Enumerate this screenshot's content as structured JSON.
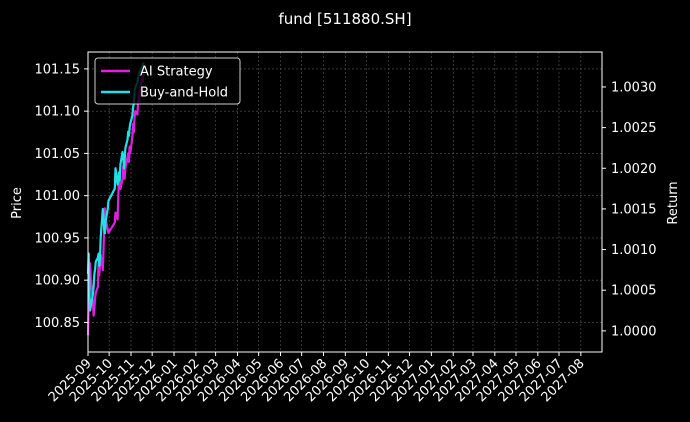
{
  "chart_data": {
    "type": "line",
    "title": "fund [511880.SH]",
    "xlabel": "",
    "ylabel": "Price",
    "y2label": "Return",
    "x_ticks": [
      "2025-09",
      "2025-10",
      "2025-11",
      "2025-12",
      "2026-01",
      "2026-02",
      "2026-03",
      "2026-04",
      "2026-05",
      "2026-06",
      "2026-07",
      "2026-08",
      "2026-09",
      "2026-10",
      "2026-11",
      "2026-12",
      "2027-01",
      "2027-02",
      "2027-03",
      "2027-04",
      "2027-05",
      "2027-06",
      "2027-07",
      "2027-08"
    ],
    "xlim": [
      "2025-09-01",
      "2027-08-31"
    ],
    "ylim": [
      100.815,
      101.17
    ],
    "y_ticks": [
      100.85,
      100.9,
      100.95,
      101.0,
      101.05,
      101.1,
      101.15
    ],
    "y2lim": [
      0.99974,
      1.00343
    ],
    "y2_ticks": [
      1.0,
      1.0005,
      1.001,
      1.0015,
      1.002,
      1.0025,
      1.003
    ],
    "grid": true,
    "legend_position": "upper-left",
    "background_color": "#000000",
    "series": [
      {
        "name": "AI Strategy",
        "axis": "price",
        "color": "#e020e0",
        "points": [
          [
            "2025-09-01",
            100.835
          ],
          [
            "2025-09-02",
            100.87
          ],
          [
            "2025-09-03",
            100.905
          ],
          [
            "2025-09-04",
            100.92
          ],
          [
            "2025-09-05",
            100.9
          ],
          [
            "2025-09-08",
            100.872
          ],
          [
            "2025-09-09",
            100.858
          ],
          [
            "2025-09-10",
            100.866
          ],
          [
            "2025-09-11",
            100.878
          ],
          [
            "2025-09-12",
            100.885
          ],
          [
            "2025-09-15",
            100.892
          ],
          [
            "2025-09-16",
            100.92
          ],
          [
            "2025-09-17",
            100.906
          ],
          [
            "2025-09-18",
            100.918
          ],
          [
            "2025-09-19",
            100.93
          ],
          [
            "2025-09-22",
            100.912
          ],
          [
            "2025-09-23",
            100.935
          ],
          [
            "2025-09-24",
            100.965
          ],
          [
            "2025-09-25",
            100.985
          ],
          [
            "2025-09-26",
            100.972
          ],
          [
            "2025-09-29",
            100.96
          ],
          [
            "2025-09-30",
            100.956
          ],
          [
            "2025-10-09",
            100.968
          ],
          [
            "2025-10-10",
            100.98
          ],
          [
            "2025-10-13",
            100.972
          ],
          [
            "2025-10-14",
            101.0
          ],
          [
            "2025-10-15",
            101.02
          ],
          [
            "2025-10-16",
            101.015
          ],
          [
            "2025-10-17",
            101.008
          ],
          [
            "2025-10-20",
            101.02
          ],
          [
            "2025-10-21",
            101.035
          ],
          [
            "2025-10-22",
            101.028
          ],
          [
            "2025-10-23",
            101.02
          ],
          [
            "2025-10-24",
            101.032
          ],
          [
            "2025-10-27",
            101.045
          ],
          [
            "2025-10-28",
            101.05
          ],
          [
            "2025-10-29",
            101.04
          ],
          [
            "2025-10-30",
            101.058
          ],
          [
            "2025-10-31",
            101.05
          ],
          [
            "2025-11-03",
            101.07
          ],
          [
            "2025-11-04",
            101.085
          ],
          [
            "2025-11-05",
            101.075
          ],
          [
            "2025-11-06",
            101.092
          ],
          [
            "2025-11-07",
            101.1
          ],
          [
            "2025-11-10",
            101.096
          ],
          [
            "2025-11-11",
            101.11
          ],
          [
            "2025-11-12",
            101.12
          ],
          [
            "2025-11-13",
            101.112
          ],
          [
            "2025-11-14",
            101.128
          ],
          [
            "2025-11-17",
            101.14
          ],
          [
            "2025-11-18",
            101.135
          ],
          [
            "2025-11-19",
            101.145
          ]
        ]
      },
      {
        "name": "Buy-and-Hold",
        "axis": "return",
        "color": "#20e0e8",
        "points": [
          [
            "2025-09-01",
            1.0007
          ],
          [
            "2025-09-02",
            1.00095
          ],
          [
            "2025-09-03",
            1.0005
          ],
          [
            "2025-09-04",
            1.00025
          ],
          [
            "2025-09-05",
            1.0003
          ],
          [
            "2025-09-08",
            1.00045
          ],
          [
            "2025-09-09",
            1.00055
          ],
          [
            "2025-09-10",
            1.0007
          ],
          [
            "2025-09-11",
            1.00075
          ],
          [
            "2025-09-12",
            1.00085
          ],
          [
            "2025-09-15",
            1.0009
          ],
          [
            "2025-09-16",
            1.00095
          ],
          [
            "2025-09-17",
            1.0008
          ],
          [
            "2025-09-18",
            1.0009
          ],
          [
            "2025-09-19",
            1.00115
          ],
          [
            "2025-09-22",
            1.0015
          ],
          [
            "2025-09-23",
            1.0014
          ],
          [
            "2025-09-24",
            1.00125
          ],
          [
            "2025-09-25",
            1.0012
          ],
          [
            "2025-09-26",
            1.00135
          ],
          [
            "2025-09-29",
            1.0015
          ],
          [
            "2025-09-30",
            1.0016
          ],
          [
            "2025-10-09",
            1.00175
          ],
          [
            "2025-10-10",
            1.002
          ],
          [
            "2025-10-13",
            1.0018
          ],
          [
            "2025-10-14",
            1.00185
          ],
          [
            "2025-10-15",
            1.00195
          ],
          [
            "2025-10-16",
            1.00185
          ],
          [
            "2025-10-17",
            1.00205
          ],
          [
            "2025-10-20",
            1.0022
          ],
          [
            "2025-10-21",
            1.00215
          ],
          [
            "2025-10-22",
            1.002
          ],
          [
            "2025-10-23",
            1.0021
          ],
          [
            "2025-10-24",
            1.00225
          ],
          [
            "2025-10-27",
            1.00235
          ],
          [
            "2025-10-28",
            1.00245
          ],
          [
            "2025-10-29",
            1.0024
          ],
          [
            "2025-10-30",
            1.0025
          ],
          [
            "2025-10-31",
            1.00255
          ],
          [
            "2025-11-03",
            1.00265
          ],
          [
            "2025-11-04",
            1.00275
          ],
          [
            "2025-11-05",
            1.0028
          ],
          [
            "2025-11-06",
            1.00295
          ],
          [
            "2025-11-07",
            1.003
          ],
          [
            "2025-11-10",
            1.00305
          ],
          [
            "2025-11-11",
            1.0031
          ],
          [
            "2025-11-12",
            1.00315
          ],
          [
            "2025-11-13",
            1.00318
          ],
          [
            "2025-11-14",
            1.0032
          ],
          [
            "2025-11-17",
            1.00325
          ],
          [
            "2025-11-18",
            1.00328
          ],
          [
            "2025-11-19",
            1.0033
          ]
        ]
      }
    ]
  }
}
